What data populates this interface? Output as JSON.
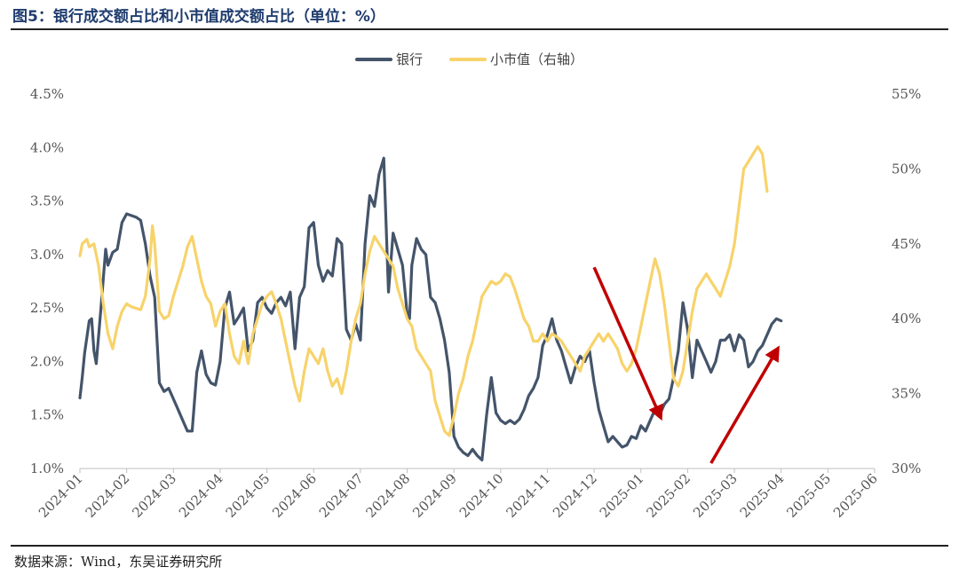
{
  "title": "图5：银行成交额占比和小市值成交额占比（单位：%）",
  "source": "数据来源：Wind，东吴证券研究所",
  "colors": {
    "bank": "#44546a",
    "small_cap": "#f7d36b",
    "arrow": "#c00000",
    "axis": "#bfbfbf"
  },
  "chart_data": {
    "type": "line",
    "x_ticks": [
      "2024-01",
      "2024-02",
      "2024-03",
      "2024-04",
      "2024-05",
      "2024-06",
      "2024-07",
      "2024-08",
      "2024-09",
      "2024-10",
      "2024-11",
      "2024-12",
      "2025-01",
      "2025-02",
      "2025-03",
      "2025-04",
      "2025-05",
      "2025-06"
    ],
    "y_left": {
      "min": 1.0,
      "max": 4.5,
      "ticks": [
        "1.0%",
        "1.5%",
        "2.0%",
        "2.5%",
        "3.0%",
        "3.5%",
        "4.0%",
        "4.5%"
      ]
    },
    "y_right": {
      "min": 30,
      "max": 55,
      "ticks": [
        "30%",
        "35%",
        "40%",
        "45%",
        "50%",
        "55%"
      ]
    },
    "legend": {
      "placement": "top-center"
    },
    "series": [
      {
        "name": "银行",
        "axis": "left",
        "points": [
          [
            0,
            1.66
          ],
          [
            0.05,
            1.85
          ],
          [
            0.1,
            2.08
          ],
          [
            0.2,
            2.38
          ],
          [
            0.25,
            2.4
          ],
          [
            0.3,
            2.1
          ],
          [
            0.35,
            1.98
          ],
          [
            0.45,
            2.5
          ],
          [
            0.55,
            3.05
          ],
          [
            0.6,
            2.9
          ],
          [
            0.7,
            3.02
          ],
          [
            0.8,
            3.05
          ],
          [
            0.9,
            3.3
          ],
          [
            1.0,
            3.38
          ],
          [
            1.2,
            3.35
          ],
          [
            1.3,
            3.32
          ],
          [
            1.4,
            3.1
          ],
          [
            1.5,
            2.8
          ],
          [
            1.6,
            2.6
          ],
          [
            1.7,
            1.8
          ],
          [
            1.8,
            1.72
          ],
          [
            1.9,
            1.75
          ],
          [
            2.0,
            1.65
          ],
          [
            2.1,
            1.55
          ],
          [
            2.2,
            1.45
          ],
          [
            2.3,
            1.35
          ],
          [
            2.4,
            1.35
          ],
          [
            2.5,
            1.9
          ],
          [
            2.6,
            2.1
          ],
          [
            2.7,
            1.88
          ],
          [
            2.8,
            1.8
          ],
          [
            2.9,
            1.78
          ],
          [
            3.0,
            2.0
          ],
          [
            3.1,
            2.5
          ],
          [
            3.2,
            2.65
          ],
          [
            3.3,
            2.35
          ],
          [
            3.4,
            2.42
          ],
          [
            3.5,
            2.5
          ],
          [
            3.6,
            2.1
          ],
          [
            3.7,
            2.2
          ],
          [
            3.8,
            2.55
          ],
          [
            3.9,
            2.6
          ],
          [
            4.0,
            2.5
          ],
          [
            4.1,
            2.45
          ],
          [
            4.2,
            2.55
          ],
          [
            4.3,
            2.6
          ],
          [
            4.4,
            2.52
          ],
          [
            4.5,
            2.65
          ],
          [
            4.6,
            2.12
          ],
          [
            4.7,
            2.6
          ],
          [
            4.8,
            2.7
          ],
          [
            4.9,
            3.25
          ],
          [
            5.0,
            3.3
          ],
          [
            5.1,
            2.9
          ],
          [
            5.2,
            2.75
          ],
          [
            5.3,
            2.85
          ],
          [
            5.4,
            2.8
          ],
          [
            5.5,
            3.15
          ],
          [
            5.6,
            3.1
          ],
          [
            5.7,
            2.3
          ],
          [
            5.8,
            2.2
          ],
          [
            5.9,
            2.35
          ],
          [
            6.0,
            2.2
          ],
          [
            6.1,
            3.1
          ],
          [
            6.2,
            3.55
          ],
          [
            6.3,
            3.45
          ],
          [
            6.4,
            3.75
          ],
          [
            6.5,
            3.9
          ],
          [
            6.6,
            2.65
          ],
          [
            6.7,
            3.2
          ],
          [
            6.8,
            3.05
          ],
          [
            6.9,
            2.9
          ],
          [
            7.0,
            2.45
          ],
          [
            7.05,
            2.4
          ],
          [
            7.1,
            2.9
          ],
          [
            7.2,
            3.15
          ],
          [
            7.3,
            3.05
          ],
          [
            7.4,
            3.0
          ],
          [
            7.5,
            2.6
          ],
          [
            7.6,
            2.55
          ],
          [
            7.7,
            2.4
          ],
          [
            7.8,
            2.2
          ],
          [
            7.9,
            1.9
          ],
          [
            8.0,
            1.3
          ],
          [
            8.1,
            1.2
          ],
          [
            8.2,
            1.15
          ],
          [
            8.3,
            1.12
          ],
          [
            8.4,
            1.18
          ],
          [
            8.5,
            1.12
          ],
          [
            8.6,
            1.08
          ],
          [
            8.7,
            1.5
          ],
          [
            8.8,
            1.85
          ],
          [
            8.9,
            1.52
          ],
          [
            9.0,
            1.45
          ],
          [
            9.1,
            1.42
          ],
          [
            9.2,
            1.45
          ],
          [
            9.3,
            1.42
          ],
          [
            9.4,
            1.46
          ],
          [
            9.5,
            1.55
          ],
          [
            9.6,
            1.68
          ],
          [
            9.7,
            1.75
          ],
          [
            9.8,
            1.85
          ],
          [
            9.9,
            2.15
          ],
          [
            10.0,
            2.25
          ],
          [
            10.1,
            2.4
          ],
          [
            10.2,
            2.2
          ],
          [
            10.3,
            2.1
          ],
          [
            10.4,
            1.95
          ],
          [
            10.5,
            1.8
          ],
          [
            10.6,
            1.95
          ],
          [
            10.7,
            2.05
          ],
          [
            10.8,
            2.0
          ],
          [
            10.9,
            2.1
          ],
          [
            11.0,
            1.8
          ],
          [
            11.1,
            1.55
          ],
          [
            11.2,
            1.4
          ],
          [
            11.3,
            1.25
          ],
          [
            11.4,
            1.3
          ],
          [
            11.5,
            1.25
          ],
          [
            11.6,
            1.2
          ],
          [
            11.7,
            1.22
          ],
          [
            11.8,
            1.3
          ],
          [
            11.9,
            1.28
          ],
          [
            12.0,
            1.4
          ],
          [
            12.1,
            1.35
          ],
          [
            12.2,
            1.45
          ],
          [
            12.3,
            1.55
          ],
          [
            12.4,
            1.5
          ],
          [
            12.5,
            1.6
          ],
          [
            12.6,
            1.65
          ],
          [
            12.7,
            1.85
          ],
          [
            12.8,
            2.1
          ],
          [
            12.9,
            2.55
          ],
          [
            13.0,
            2.3
          ],
          [
            13.1,
            1.85
          ],
          [
            13.2,
            2.2
          ],
          [
            13.3,
            2.1
          ],
          [
            13.4,
            2.0
          ],
          [
            13.5,
            1.9
          ],
          [
            13.6,
            2.0
          ],
          [
            13.7,
            2.2
          ],
          [
            13.8,
            2.2
          ],
          [
            13.9,
            2.25
          ],
          [
            14.0,
            2.1
          ],
          [
            14.1,
            2.25
          ],
          [
            14.2,
            2.2
          ],
          [
            14.3,
            1.95
          ],
          [
            14.4,
            2.0
          ],
          [
            14.5,
            2.1
          ],
          [
            14.6,
            2.15
          ],
          [
            14.7,
            2.25
          ],
          [
            14.8,
            2.35
          ],
          [
            14.9,
            2.4
          ],
          [
            15.0,
            2.38
          ]
        ]
      },
      {
        "name": "小市值（右轴）",
        "axis": "right",
        "points": [
          [
            0,
            44.2
          ],
          [
            0.05,
            45.0
          ],
          [
            0.15,
            45.3
          ],
          [
            0.2,
            44.8
          ],
          [
            0.3,
            45.0
          ],
          [
            0.4,
            43.5
          ],
          [
            0.5,
            41.0
          ],
          [
            0.6,
            39.0
          ],
          [
            0.7,
            38.0
          ],
          [
            0.8,
            39.5
          ],
          [
            0.9,
            40.5
          ],
          [
            1.0,
            41.0
          ],
          [
            1.1,
            40.8
          ],
          [
            1.3,
            40.6
          ],
          [
            1.4,
            41.5
          ],
          [
            1.5,
            44.0
          ],
          [
            1.55,
            46.2
          ],
          [
            1.6,
            45.0
          ],
          [
            1.7,
            40.5
          ],
          [
            1.8,
            40.0
          ],
          [
            1.9,
            40.2
          ],
          [
            2.0,
            41.5
          ],
          [
            2.1,
            42.5
          ],
          [
            2.2,
            43.5
          ],
          [
            2.3,
            44.8
          ],
          [
            2.4,
            45.5
          ],
          [
            2.5,
            44.0
          ],
          [
            2.6,
            42.5
          ],
          [
            2.7,
            41.5
          ],
          [
            2.8,
            41.0
          ],
          [
            2.9,
            39.5
          ],
          [
            3.0,
            40.5
          ],
          [
            3.1,
            41.0
          ],
          [
            3.2,
            39.0
          ],
          [
            3.3,
            37.5
          ],
          [
            3.4,
            37.0
          ],
          [
            3.5,
            38.5
          ],
          [
            3.6,
            37.0
          ],
          [
            3.7,
            39.0
          ],
          [
            3.8,
            40.0
          ],
          [
            3.9,
            41.0
          ],
          [
            4.0,
            41.5
          ],
          [
            4.1,
            41.8
          ],
          [
            4.2,
            41.0
          ],
          [
            4.3,
            40.0
          ],
          [
            4.4,
            38.5
          ],
          [
            4.5,
            37.0
          ],
          [
            4.6,
            35.5
          ],
          [
            4.7,
            34.5
          ],
          [
            4.8,
            36.5
          ],
          [
            4.9,
            38.0
          ],
          [
            5.0,
            37.5
          ],
          [
            5.1,
            37.0
          ],
          [
            5.2,
            38.0
          ],
          [
            5.3,
            36.5
          ],
          [
            5.4,
            35.5
          ],
          [
            5.5,
            36.0
          ],
          [
            5.6,
            35.0
          ],
          [
            5.7,
            36.5
          ],
          [
            5.8,
            38.5
          ],
          [
            5.9,
            40.0
          ],
          [
            6.0,
            41.0
          ],
          [
            6.1,
            43.0
          ],
          [
            6.2,
            44.5
          ],
          [
            6.3,
            45.5
          ],
          [
            6.4,
            45.0
          ],
          [
            6.5,
            44.5
          ],
          [
            6.6,
            44.0
          ],
          [
            6.7,
            43.5
          ],
          [
            6.8,
            42.0
          ],
          [
            6.9,
            41.0
          ],
          [
            7.0,
            40.0
          ],
          [
            7.1,
            39.5
          ],
          [
            7.2,
            38.0
          ],
          [
            7.3,
            37.5
          ],
          [
            7.4,
            37.0
          ],
          [
            7.5,
            36.5
          ],
          [
            7.6,
            34.5
          ],
          [
            7.7,
            33.5
          ],
          [
            7.8,
            32.5
          ],
          [
            7.9,
            32.2
          ],
          [
            8.0,
            33.5
          ],
          [
            8.1,
            35.0
          ],
          [
            8.2,
            36.0
          ],
          [
            8.3,
            37.5
          ],
          [
            8.4,
            38.5
          ],
          [
            8.5,
            40.0
          ],
          [
            8.6,
            41.5
          ],
          [
            8.7,
            42.0
          ],
          [
            8.8,
            42.5
          ],
          [
            8.9,
            42.3
          ],
          [
            9.0,
            42.5
          ],
          [
            9.1,
            43.0
          ],
          [
            9.2,
            42.8
          ],
          [
            9.3,
            42.0
          ],
          [
            9.4,
            41.0
          ],
          [
            9.5,
            40.0
          ],
          [
            9.6,
            39.5
          ],
          [
            9.7,
            38.5
          ],
          [
            9.8,
            38.5
          ],
          [
            9.9,
            39.0
          ],
          [
            10.0,
            38.5
          ],
          [
            10.1,
            39.0
          ],
          [
            10.2,
            38.8
          ],
          [
            10.3,
            38.5
          ],
          [
            10.4,
            38.0
          ],
          [
            10.5,
            37.5
          ],
          [
            10.6,
            37.0
          ],
          [
            10.7,
            36.5
          ],
          [
            10.8,
            37.5
          ],
          [
            10.9,
            38.0
          ],
          [
            11.0,
            38.5
          ],
          [
            11.1,
            39.0
          ],
          [
            11.2,
            38.5
          ],
          [
            11.3,
            39.0
          ],
          [
            11.4,
            38.5
          ],
          [
            11.5,
            38.0
          ],
          [
            11.6,
            37.0
          ],
          [
            11.7,
            36.5
          ],
          [
            11.8,
            37.0
          ],
          [
            11.9,
            38.0
          ],
          [
            12.0,
            39.5
          ],
          [
            12.1,
            41.0
          ],
          [
            12.2,
            42.5
          ],
          [
            12.3,
            44.0
          ],
          [
            12.4,
            43.0
          ],
          [
            12.5,
            41.0
          ],
          [
            12.6,
            38.5
          ],
          [
            12.7,
            36.0
          ],
          [
            12.8,
            35.5
          ],
          [
            12.9,
            36.5
          ],
          [
            13.0,
            38.5
          ],
          [
            13.1,
            40.5
          ],
          [
            13.2,
            42.0
          ],
          [
            13.3,
            42.5
          ],
          [
            13.4,
            43.0
          ],
          [
            13.5,
            42.5
          ],
          [
            13.6,
            42.0
          ],
          [
            13.7,
            41.5
          ],
          [
            13.8,
            42.5
          ],
          [
            13.9,
            43.5
          ],
          [
            14.0,
            45.0
          ],
          [
            14.1,
            47.5
          ],
          [
            14.2,
            50.0
          ],
          [
            14.3,
            50.5
          ],
          [
            14.4,
            51.0
          ],
          [
            14.5,
            51.5
          ],
          [
            14.6,
            51.0
          ],
          [
            14.7,
            48.5
          ]
        ]
      }
    ],
    "annotations": [
      {
        "type": "arrow",
        "from": [
          11.0,
          2.88
        ],
        "to": [
          12.4,
          1.5
        ]
      },
      {
        "type": "arrow",
        "from": [
          13.5,
          1.05
        ],
        "to": [
          14.9,
          2.1
        ]
      }
    ]
  }
}
